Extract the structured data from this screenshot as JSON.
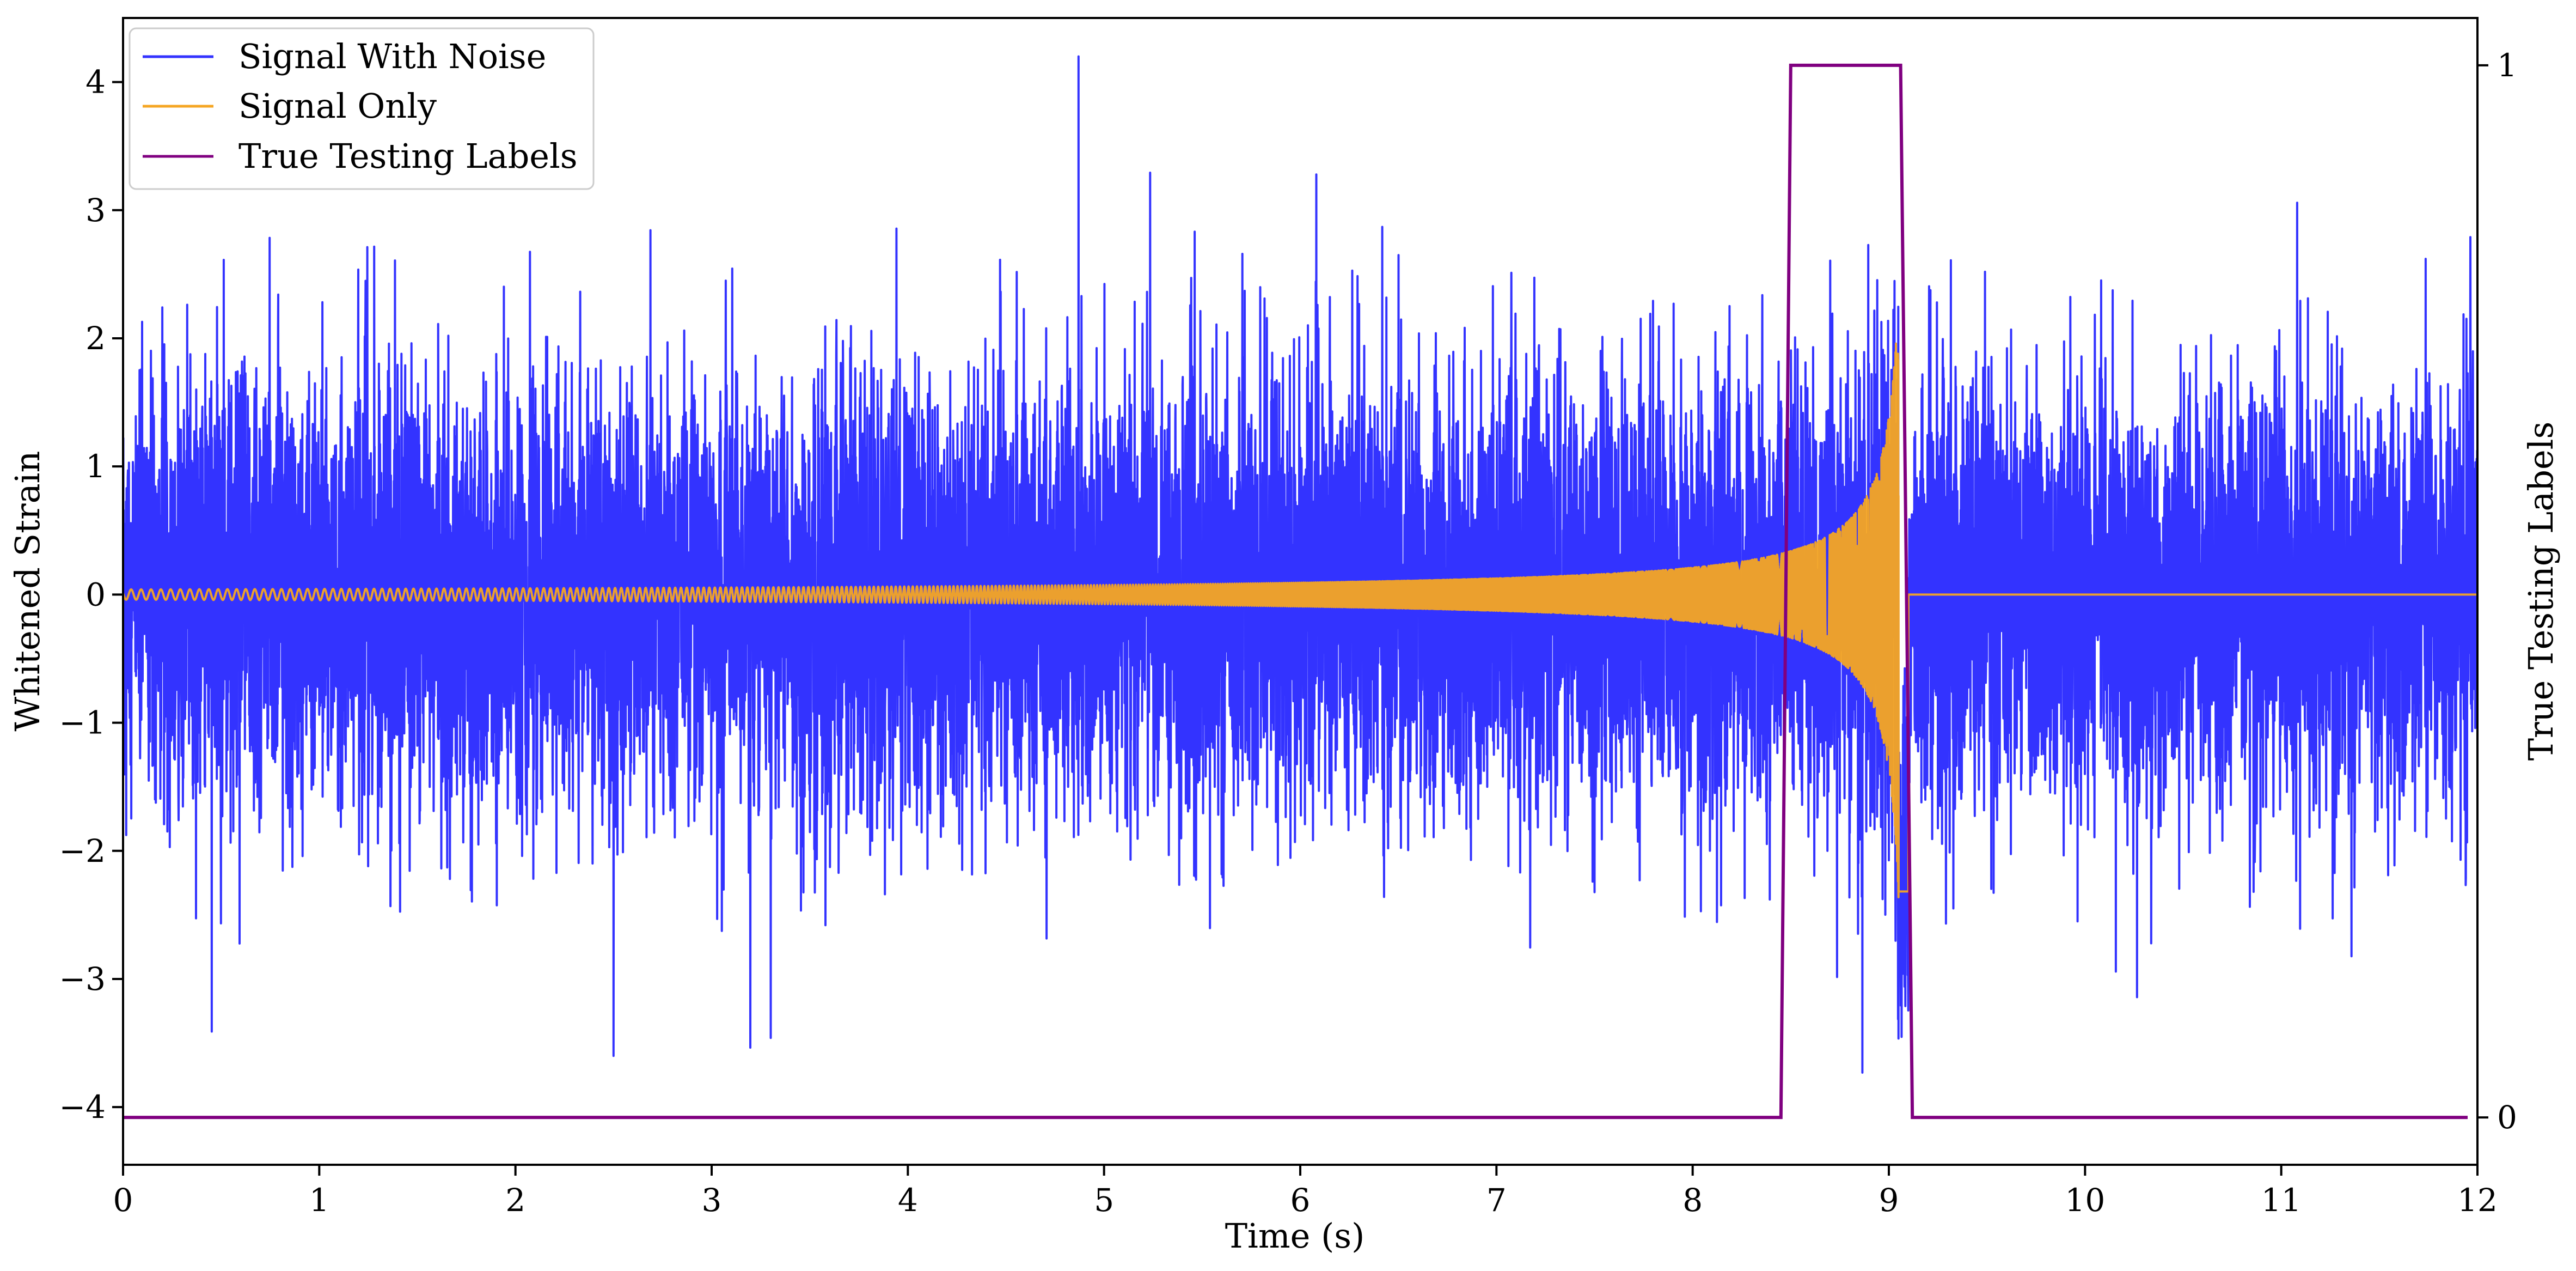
{
  "chart_data": {
    "type": "line",
    "xlabel": "Time (s)",
    "ylabel": "Whitened Strain",
    "y2label": "True Testing Labels",
    "xlim": [
      0,
      12
    ],
    "ylim": [
      -4.45,
      4.5
    ],
    "y2lim": [
      -0.045,
      1.045
    ],
    "x_ticks": [
      0,
      1,
      2,
      3,
      4,
      5,
      6,
      7,
      8,
      9,
      10,
      11,
      12
    ],
    "y_ticks": [
      -4,
      -3,
      -2,
      -1,
      0,
      1,
      2,
      3,
      4
    ],
    "y_tick_labels": [
      "−4",
      "−3",
      "−2",
      "−1",
      "0",
      "1",
      "2",
      "3",
      "4"
    ],
    "y2_ticks": [
      0,
      1
    ],
    "grid": false,
    "legend_position": "top-left",
    "series": [
      {
        "name": "Signal With Noise",
        "color": "#3333ff",
        "axis": "left",
        "description_stats": {
          "x_start": 0,
          "x_end": 12,
          "typical_amplitude_range": [
            -2.5,
            2.6
          ],
          "max_peak": 4.2,
          "max_peak_time": 4.87,
          "min_peak": -3.6,
          "min_peak_time": 2.5
        }
      },
      {
        "name": "Signal Only",
        "color": "#f5a623",
        "axis": "left",
        "chirp": {
          "x_start": 0,
          "merger_time": 9.1,
          "end": 12,
          "initial_amplitude": 0.04,
          "peak_amplitude": 2.4,
          "post_merger_value": 0
        }
      },
      {
        "name": "True Testing Labels",
        "color": "#800080",
        "axis": "right",
        "x": [
          0,
          8.45,
          8.5,
          9.06,
          9.12,
          11.95
        ],
        "y": [
          0,
          0,
          1,
          1,
          0,
          0
        ]
      }
    ]
  }
}
